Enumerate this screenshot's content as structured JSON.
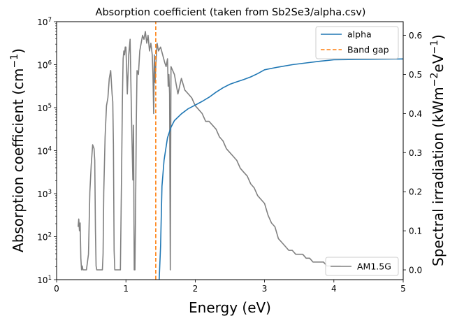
{
  "chart_data": {
    "type": "line",
    "title": "Absorption coefficient (taken from Sb2Se3/alpha.csv)",
    "xlabel": "Energy (eV)",
    "ylabel_left": "Absorption coefficient (cm",
    "ylabel_left_sup": "−1",
    "ylabel_left_tail": ")",
    "ylabel_right": "Spectral irradiation  (kWm",
    "ylabel_right_sup1": "−2",
    "ylabel_right_mid": "eV",
    "ylabel_right_sup2": "−1",
    "ylabel_right_tail": ")",
    "xlim": [
      0,
      5
    ],
    "ylim_left": [
      10,
      10000000
    ],
    "yscale_left": "log",
    "ylim_right": [
      -0.025,
      0.635
    ],
    "xticks": [
      "0",
      "1",
      "2",
      "3",
      "4",
      "5"
    ],
    "yticks_left": [
      {
        "base": "10",
        "exp": "1"
      },
      {
        "base": "10",
        "exp": "2"
      },
      {
        "base": "10",
        "exp": "3"
      },
      {
        "base": "10",
        "exp": "4"
      },
      {
        "base": "10",
        "exp": "5"
      },
      {
        "base": "10",
        "exp": "6"
      },
      {
        "base": "10",
        "exp": "7"
      }
    ],
    "yticks_right": [
      "0.0",
      "0.1",
      "0.2",
      "0.3",
      "0.4",
      "0.5",
      "0.6"
    ],
    "legend_left_axis": {
      "placement": "top-right",
      "entries": [
        {
          "label": "alpha",
          "color": "#1f77b4",
          "style": "solid"
        },
        {
          "label": "Band gap",
          "color": "#ff7f0e",
          "style": "dashed"
        }
      ]
    },
    "legend_right_axis": {
      "placement": "bottom-right",
      "entries": [
        {
          "label": "AM1.5G",
          "color": "#808080",
          "style": "solid"
        }
      ]
    },
    "series": [
      {
        "name": "alpha",
        "axis": "left",
        "color": "#1f77b4",
        "x": [
          1.48,
          1.5,
          1.52,
          1.55,
          1.6,
          1.65,
          1.7,
          1.8,
          1.9,
          2.0,
          2.1,
          2.2,
          2.3,
          2.4,
          2.5,
          2.6,
          2.7,
          2.8,
          2.9,
          3.0,
          3.2,
          3.4,
          3.6,
          3.8,
          4.0,
          4.5,
          5.0
        ],
        "values": [
          10,
          60,
          1500,
          6000,
          20000,
          35000,
          50000,
          72000,
          95000,
          115000,
          140000,
          175000,
          230000,
          290000,
          350000,
          400000,
          450000,
          520000,
          620000,
          760000,
          880000,
          1000000,
          1100000,
          1200000,
          1300000,
          1330000,
          1360000
        ]
      },
      {
        "name": "Band gap",
        "axis": "left",
        "color": "#ff7f0e",
        "x": [
          1.43,
          1.43
        ],
        "values": [
          10,
          10000000
        ]
      },
      {
        "name": "AM1.5G",
        "axis": "right",
        "color": "#808080",
        "x": [
          0.31,
          0.32,
          0.33,
          0.34,
          0.35,
          0.36,
          0.37,
          0.38,
          0.4,
          0.43,
          0.46,
          0.48,
          0.5,
          0.52,
          0.54,
          0.55,
          0.56,
          0.57,
          0.58,
          0.59,
          0.6,
          0.62,
          0.64,
          0.66,
          0.67,
          0.68,
          0.7,
          0.72,
          0.74,
          0.76,
          0.77,
          0.78,
          0.79,
          0.8,
          0.81,
          0.82,
          0.83,
          0.84,
          0.85,
          0.86,
          0.87,
          0.88,
          0.89,
          0.9,
          0.92,
          0.94,
          0.95,
          0.96,
          0.97,
          0.98,
          0.99,
          1.0,
          1.02,
          1.04,
          1.06,
          1.08,
          1.1,
          1.11,
          1.12,
          1.13,
          1.14,
          1.15,
          1.16,
          1.18,
          1.2,
          1.22,
          1.24,
          1.26,
          1.28,
          1.3,
          1.32,
          1.34,
          1.36,
          1.38,
          1.39,
          1.4,
          1.41,
          1.42,
          1.43,
          1.45,
          1.47,
          1.5,
          1.53,
          1.56,
          1.58,
          1.6,
          1.61,
          1.62,
          1.63,
          1.64,
          1.65,
          1.7,
          1.75,
          1.8,
          1.85,
          1.9,
          1.95,
          2.0,
          2.05,
          2.1,
          2.15,
          2.2,
          2.25,
          2.3,
          2.35,
          2.4,
          2.45,
          2.5,
          2.55,
          2.6,
          2.65,
          2.7,
          2.75,
          2.8,
          2.85,
          2.9,
          2.95,
          3.0,
          3.05,
          3.1,
          3.15,
          3.2,
          3.25,
          3.3,
          3.35,
          3.4,
          3.45,
          3.5,
          3.55,
          3.6,
          3.65,
          3.7,
          3.75,
          3.8,
          3.85,
          3.9,
          3.95,
          4.0,
          4.05,
          4.1
        ],
        "values": [
          0.11,
          0.13,
          0.1,
          0.12,
          0.03,
          0.0,
          0.01,
          0.0,
          0.0,
          0.0,
          0.04,
          0.2,
          0.27,
          0.32,
          0.31,
          0.28,
          0.1,
          0.01,
          0.0,
          0.0,
          0.0,
          0.0,
          0.0,
          0.0,
          0.04,
          0.2,
          0.34,
          0.42,
          0.44,
          0.49,
          0.5,
          0.51,
          0.48,
          0.45,
          0.43,
          0.32,
          0.05,
          0.0,
          0.0,
          0.0,
          0.0,
          0.0,
          0.0,
          0.0,
          0.0,
          0.28,
          0.44,
          0.54,
          0.56,
          0.55,
          0.57,
          0.57,
          0.45,
          0.55,
          0.59,
          0.4,
          0.23,
          0.37,
          0.0,
          0.0,
          0.17,
          0.38,
          0.51,
          0.5,
          0.56,
          0.58,
          0.6,
          0.59,
          0.61,
          0.58,
          0.6,
          0.56,
          0.58,
          0.55,
          0.5,
          0.4,
          0.55,
          0.48,
          0.52,
          0.58,
          0.56,
          0.57,
          0.55,
          0.53,
          0.52,
          0.54,
          0.47,
          0.5,
          0.45,
          0.0,
          0.52,
          0.5,
          0.45,
          0.49,
          0.46,
          0.45,
          0.44,
          0.42,
          0.41,
          0.4,
          0.38,
          0.38,
          0.37,
          0.36,
          0.34,
          0.33,
          0.31,
          0.3,
          0.29,
          0.28,
          0.26,
          0.25,
          0.24,
          0.22,
          0.21,
          0.19,
          0.18,
          0.17,
          0.14,
          0.12,
          0.11,
          0.08,
          0.07,
          0.06,
          0.05,
          0.05,
          0.04,
          0.04,
          0.04,
          0.03,
          0.03,
          0.02,
          0.02,
          0.02,
          0.02,
          0.01,
          0.01,
          0.01,
          0.01,
          0.01
        ]
      }
    ],
    "grid": false
  }
}
